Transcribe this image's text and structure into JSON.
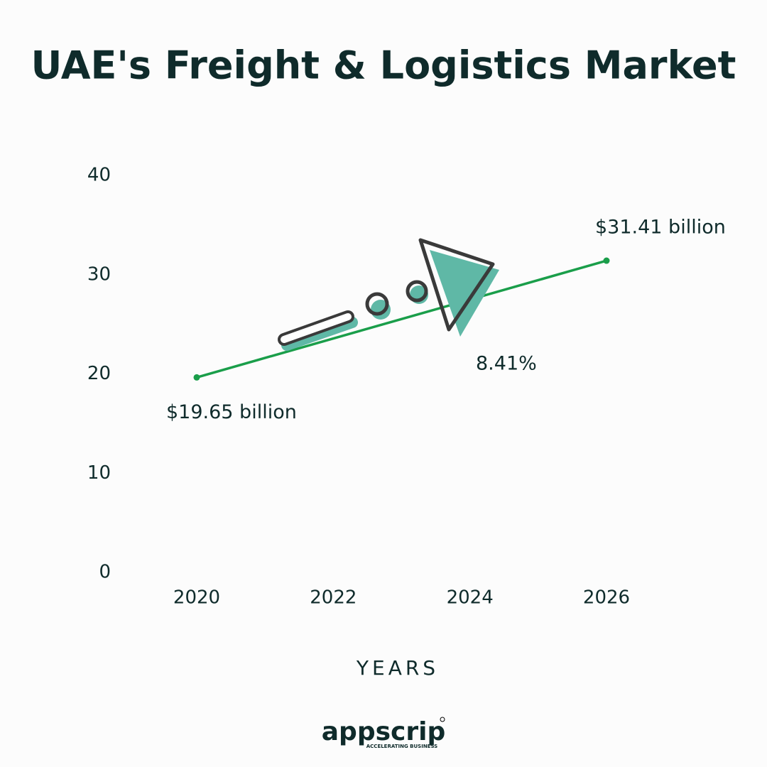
{
  "chart_data": {
    "type": "line",
    "title": "UAE's Freight & Logistics Market",
    "x": [
      2020,
      2026
    ],
    "values": [
      19.65,
      31.41
    ],
    "value_labels": [
      "$19.65 billion",
      "$31.41 billion"
    ],
    "color": "#1a9e4a",
    "xlim": [
      2020,
      2026
    ],
    "xticks": [
      2020,
      2022,
      2024,
      2026
    ],
    "ylim": [
      0,
      40
    ],
    "yticks": [
      0,
      10,
      20,
      30,
      40
    ],
    "x_label": "YEARS",
    "annotation": "8.41%",
    "grid": false
  },
  "brand": {
    "name": "appscrip",
    "tagline": "ACCELERATING BUSINESS"
  }
}
